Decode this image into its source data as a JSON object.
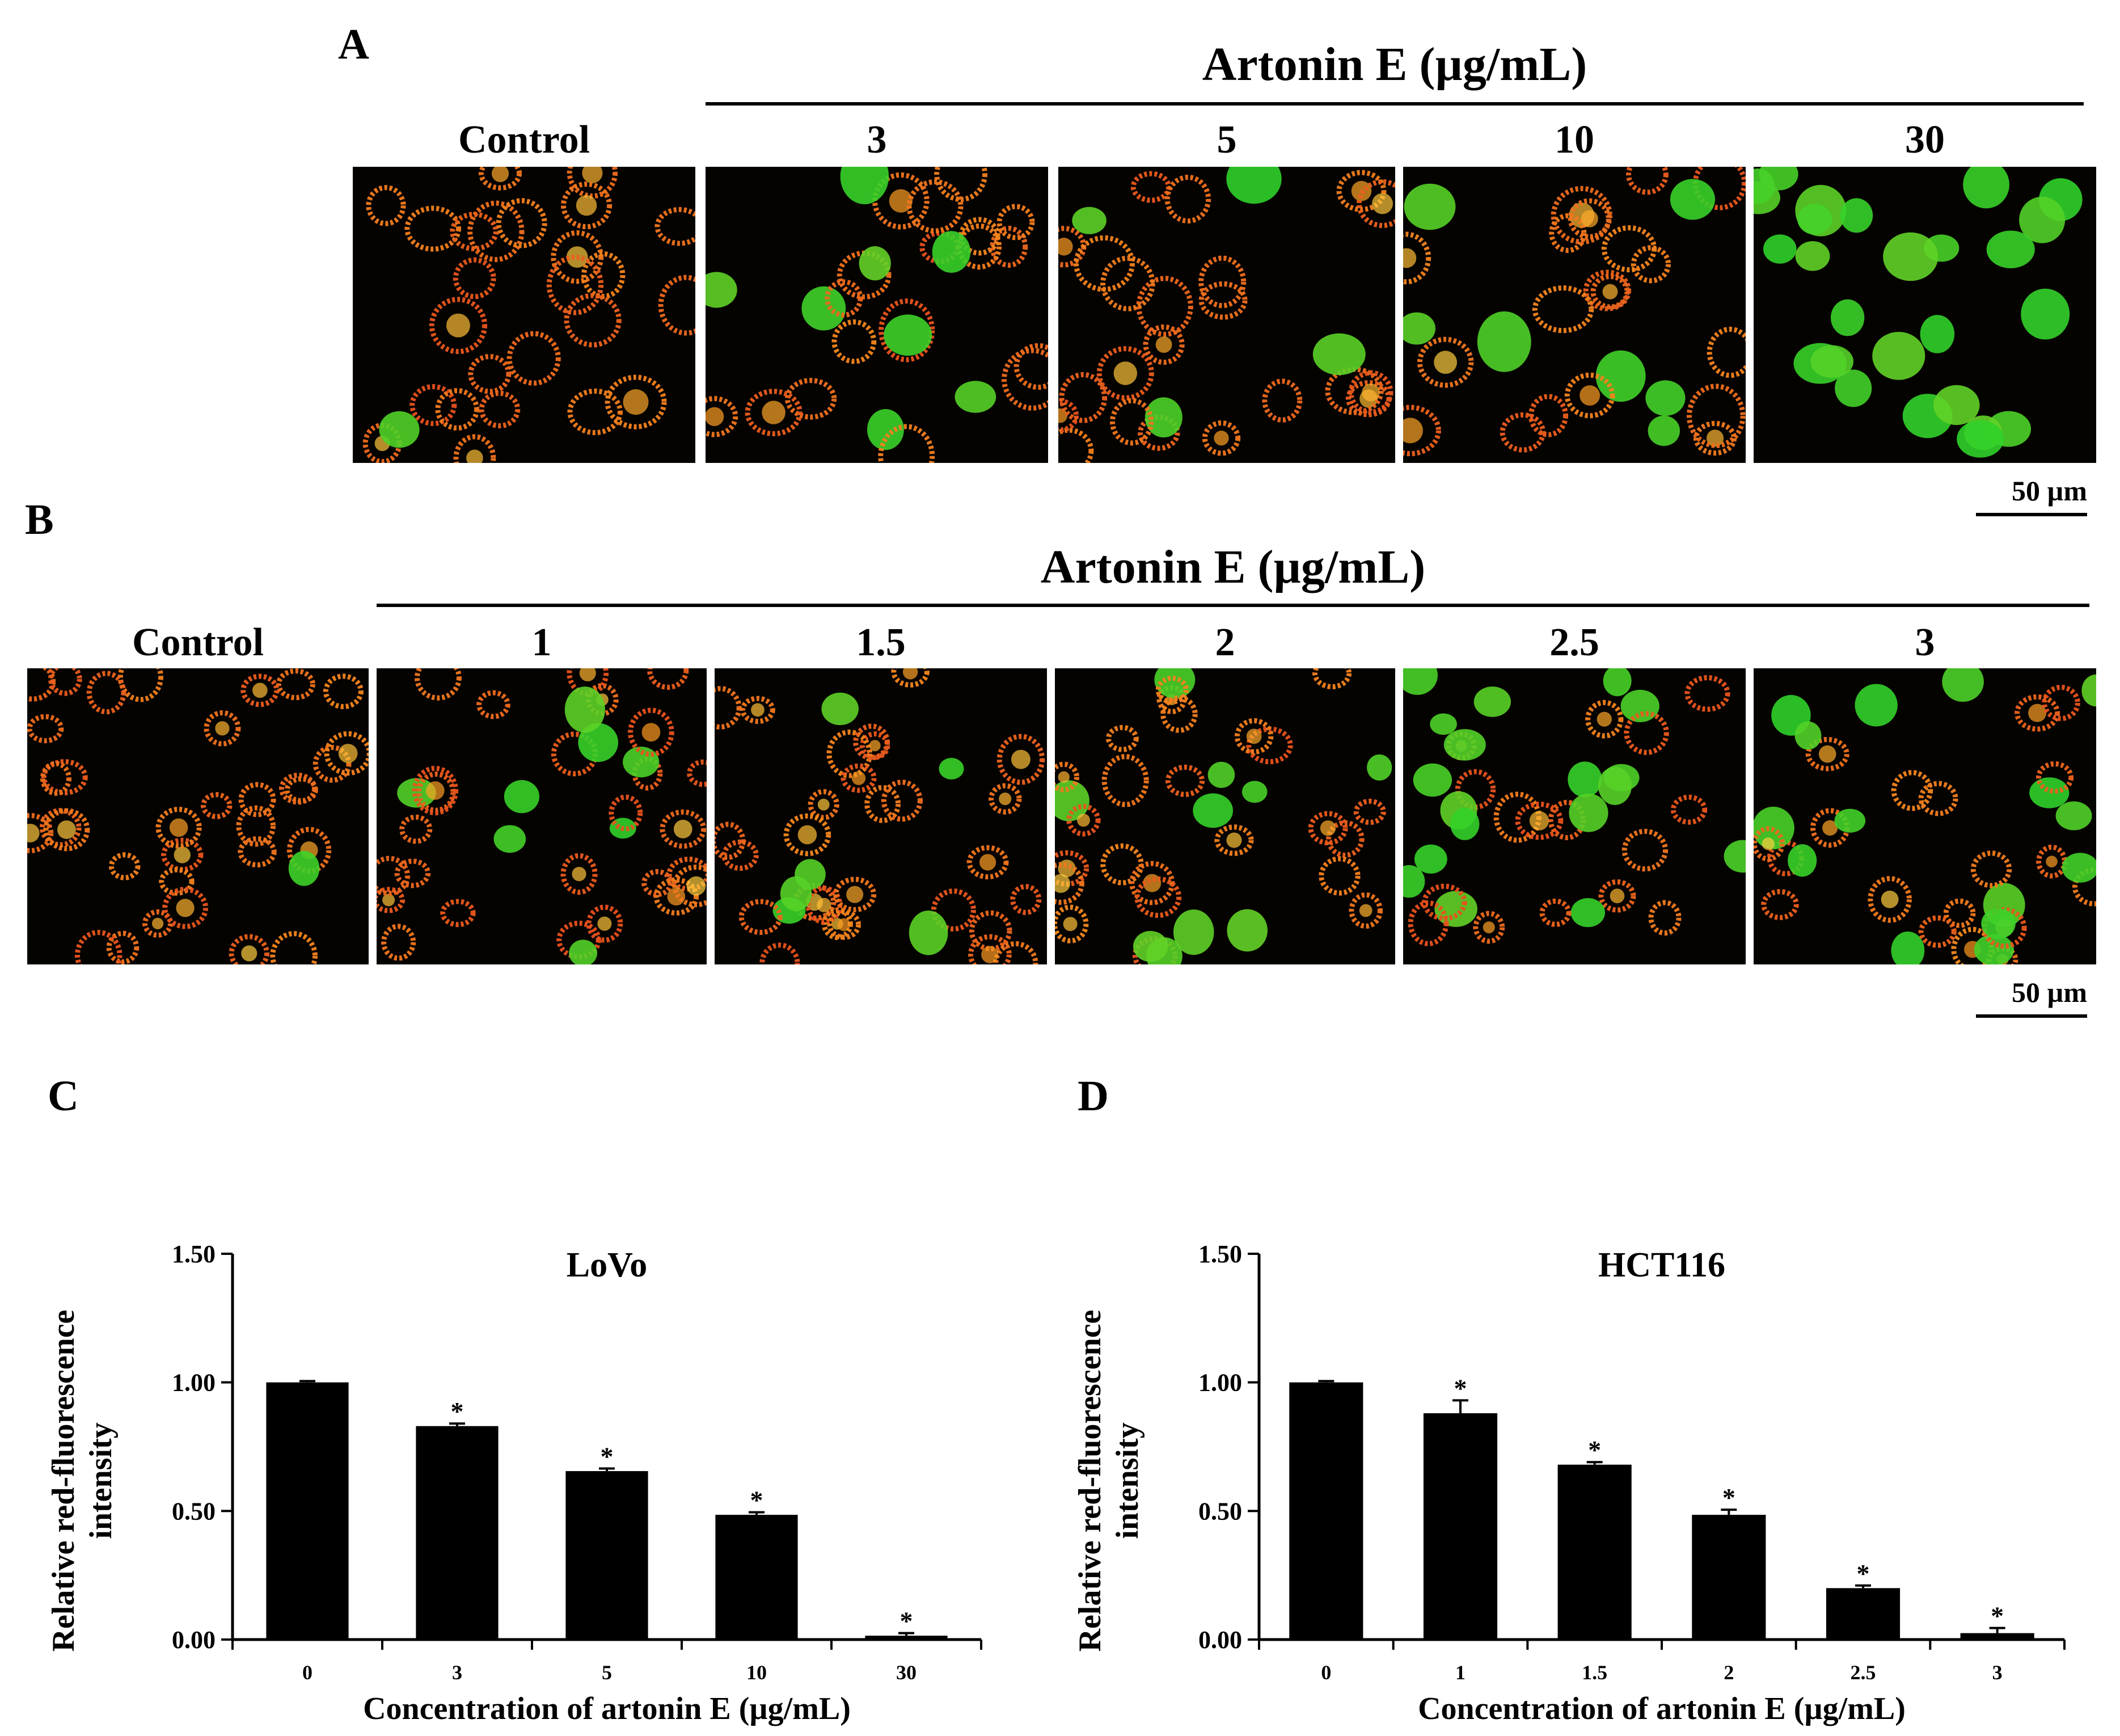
{
  "panel_a": {
    "letter": "A",
    "title": "Artonin E (µg/mL)",
    "control_label": "Control",
    "doses": [
      "3",
      "5",
      "10",
      "30"
    ],
    "scale_label": "50 µm"
  },
  "panel_b": {
    "letter": "B",
    "title": "Artonin E (µg/mL)",
    "control_label": "Control",
    "doses": [
      "1",
      "1.5",
      "2",
      "2.5",
      "3"
    ],
    "scale_label": "50 µm"
  },
  "panel_c": {
    "letter": "C"
  },
  "panel_d": {
    "letter": "D"
  },
  "colors": {
    "bar": "#000000",
    "red_stain": "#e8501c",
    "green_stain": "#2fd22a"
  },
  "chart_data": [
    {
      "type": "bar",
      "title": "LoVo",
      "xlabel": "Concentration of artonin E (µg/mL)",
      "ylabel": "Relative red-fluorescence intensity",
      "categories": [
        "0",
        "3",
        "5",
        "10",
        "30"
      ],
      "values": [
        1.0,
        0.83,
        0.655,
        0.485,
        0.015
      ],
      "errors": [
        0.005,
        0.01,
        0.01,
        0.01,
        0.01
      ],
      "significance": [
        "",
        "*",
        "*",
        "*",
        "*"
      ],
      "ylim": [
        0,
        1.5
      ],
      "yticks": [
        "0.00",
        "0.50",
        "1.00",
        "1.50"
      ]
    },
    {
      "type": "bar",
      "title": "HCT116",
      "xlabel": "Concentration of artonin E (µg/mL)",
      "ylabel": "Relative red-fluorescence intensity",
      "categories": [
        "0",
        "1",
        "1.5",
        "2",
        "2.5",
        "3"
      ],
      "values": [
        1.0,
        0.88,
        0.68,
        0.485,
        0.2,
        0.025
      ],
      "errors": [
        0.005,
        0.05,
        0.01,
        0.02,
        0.01,
        0.02
      ],
      "significance": [
        "",
        "*",
        "*",
        "*",
        "*",
        "*"
      ],
      "ylim": [
        0,
        1.5
      ],
      "yticks": [
        "0.00",
        "0.50",
        "1.00",
        "1.50"
      ]
    }
  ]
}
